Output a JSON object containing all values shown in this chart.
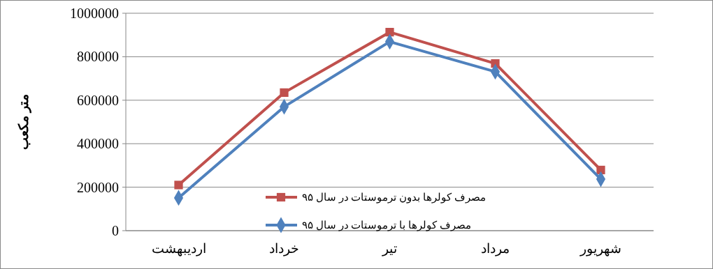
{
  "chart_data": {
    "type": "line",
    "ylabel": "متر مکعب",
    "categories": [
      "اردیبهشت",
      "خرداد",
      "تیر",
      "مرداد",
      "شهریور"
    ],
    "series": [
      {
        "name": "مصرف کولرها بدون ترموستات در سال ۹۵",
        "color": "#c0504d",
        "marker": "square",
        "values": [
          210000,
          635000,
          913000,
          769000,
          279000
        ]
      },
      {
        "name": "مصرف کولرها با ترموستات در سال ۹۵",
        "color": "#4f81bd",
        "marker": "diamond",
        "values": [
          151000,
          570000,
          869000,
          731000,
          237000
        ]
      }
    ],
    "ylim": [
      0,
      1000000
    ],
    "yticks": [
      0,
      200000,
      400000,
      600000,
      800000,
      1000000
    ],
    "grid": "y",
    "legend": "bottom"
  }
}
